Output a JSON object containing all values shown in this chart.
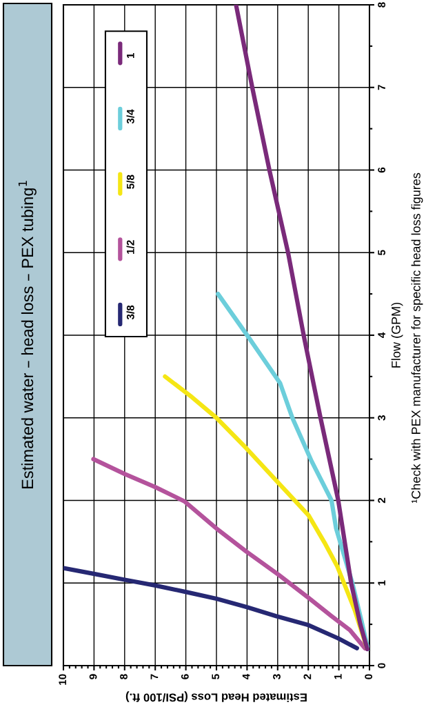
{
  "chart_data": {
    "type": "line",
    "title": "Estimated water – head loss – PEX tubing$^{1}$",
    "xlabel": "Estimated Head Loss (PSI/100 ft.)",
    "ylabel": "Flow (GPM)",
    "xlim": [
      10,
      0
    ],
    "xticks": [
      10,
      9,
      8,
      7,
      6,
      5,
      4,
      3,
      2,
      1,
      0
    ],
    "ylim": [
      0,
      8
    ],
    "yticks": [
      0,
      1,
      2,
      3,
      4,
      5,
      6,
      7,
      8
    ],
    "grid": true,
    "legend": "top left",
    "line_style": "solid",
    "marker": "none",
    "annotations": [
      "¹Check with PEX manufacturer for specific head loss figures"
    ],
    "series": [
      {
        "name": "3/8",
        "color": "#262873",
        "x": [
          0.41,
          1.02,
          1.99,
          3.05,
          4.02,
          5.0,
          5.98,
          6.99,
          8.0,
          8.98,
          10.0
        ],
        "values": [
          0.21,
          0.33,
          0.49,
          0.6,
          0.71,
          0.81,
          0.89,
          0.97,
          1.04,
          1.11,
          1.18
        ]
      },
      {
        "name": "1/2",
        "color": "#b4539c",
        "x": [
          0.15,
          0.64,
          1.24,
          1.99,
          2.97,
          4.02,
          5.0,
          6.05,
          6.99,
          8.0,
          9.02
        ],
        "values": [
          0.21,
          0.43,
          0.6,
          0.82,
          1.1,
          1.38,
          1.66,
          1.99,
          2.16,
          2.32,
          2.5
        ]
      },
      {
        "name": "5/8",
        "color": "#f5e614",
        "x": [
          0.08,
          0.49,
          1.05,
          1.47,
          1.99,
          2.97,
          4.02,
          5.0,
          5.8,
          6.68
        ],
        "values": [
          0.21,
          0.68,
          1.2,
          1.49,
          1.82,
          2.21,
          2.63,
          3.0,
          3.25,
          3.5
        ]
      },
      {
        "name": "3/4",
        "color": "#6ccedb",
        "x": [
          0.05,
          0.26,
          0.56,
          1.09,
          1.24,
          1.91,
          2.52,
          2.92,
          3.96,
          4.95
        ],
        "values": [
          0.2,
          0.54,
          1.0,
          1.66,
          2.0,
          2.49,
          3.0,
          3.42,
          3.98,
          4.5
        ]
      },
      {
        "name": "1",
        "color": "#7a2a7a",
        "x": [
          0.07,
          0.3,
          0.6,
          1.02,
          1.6,
          2.14,
          2.66,
          3.27,
          3.83,
          4.36
        ],
        "values": [
          0.2,
          0.5,
          1.0,
          2.0,
          3.0,
          3.98,
          5.0,
          6.0,
          7.0,
          8.0
        ]
      }
    ]
  }
}
